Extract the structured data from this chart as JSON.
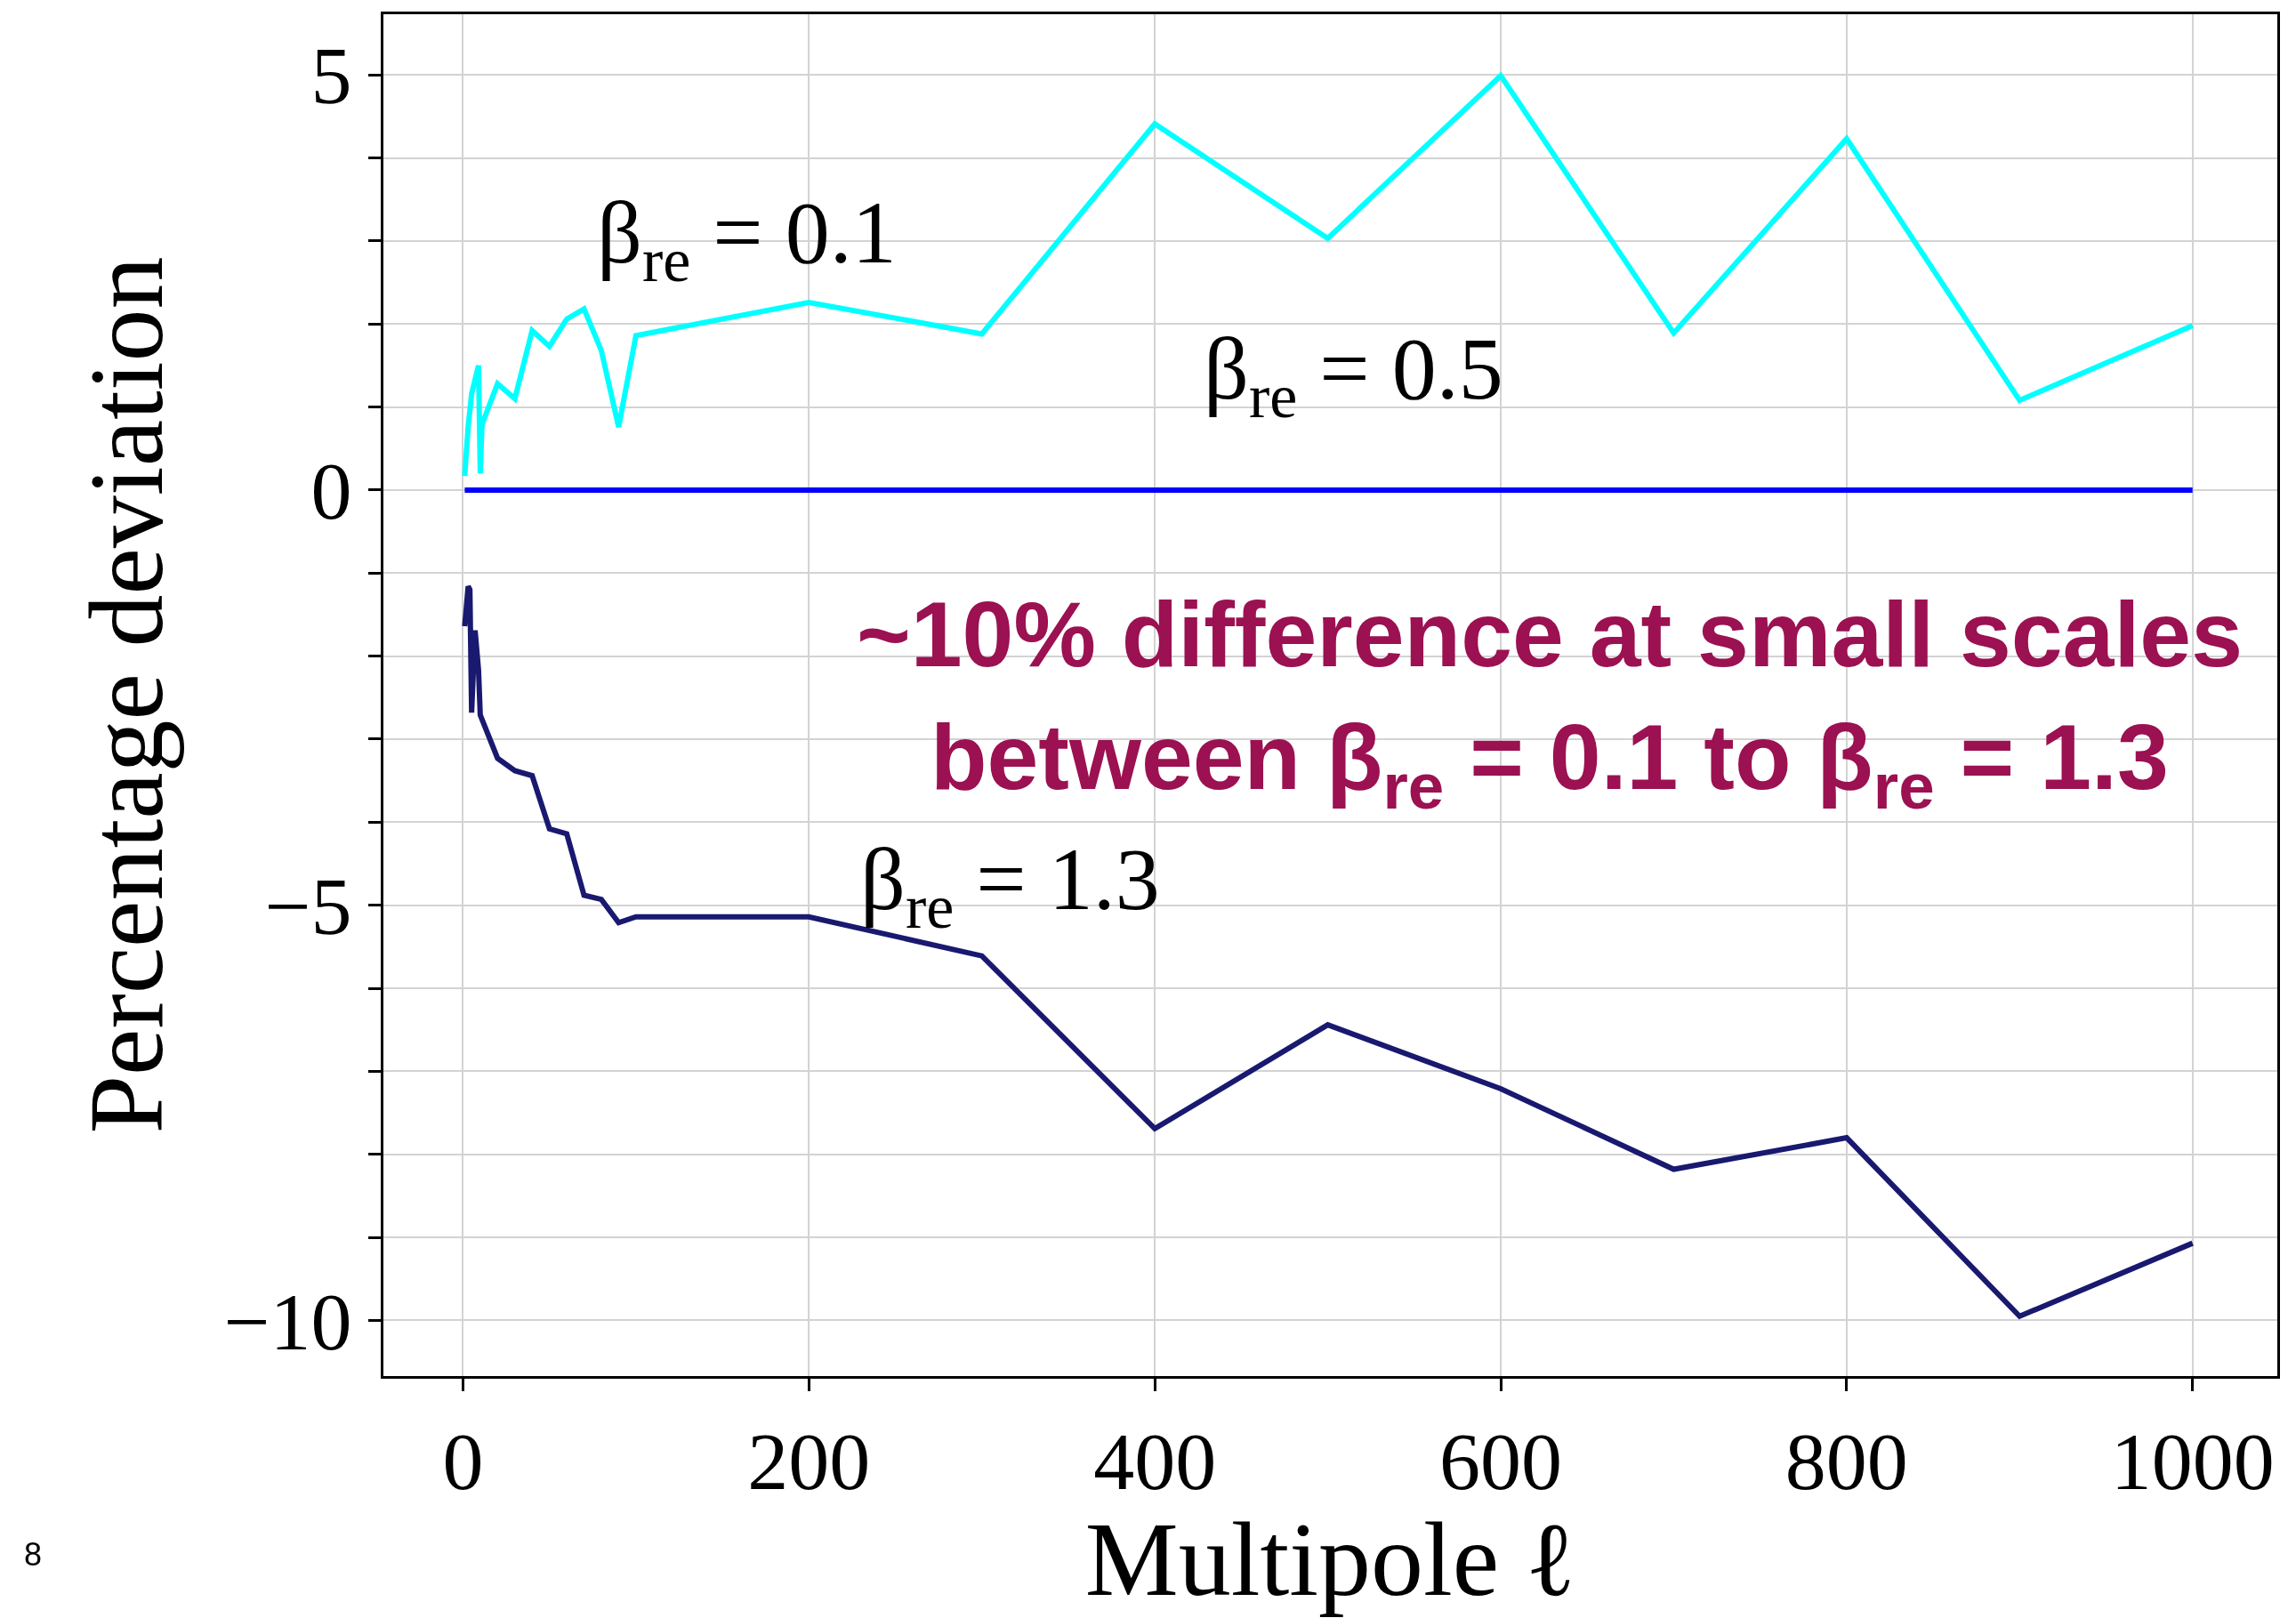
{
  "chart_data": {
    "type": "line",
    "xlabel": "Multipole ℓ",
    "ylabel": "Percentage deviation",
    "xlim": [
      -46,
      1049
    ],
    "ylim": [
      -10.67,
      5.73
    ],
    "xticks": [
      0,
      200,
      400,
      600,
      800,
      1000
    ],
    "yticks": [
      {
        "value": -10,
        "label": "−10"
      },
      {
        "value": -9,
        "label": null
      },
      {
        "value": -8,
        "label": null
      },
      {
        "value": -7,
        "label": null
      },
      {
        "value": -6,
        "label": null
      },
      {
        "value": -5,
        "label": "−5"
      },
      {
        "value": -4,
        "label": null
      },
      {
        "value": -3,
        "label": null
      },
      {
        "value": -2,
        "label": null
      },
      {
        "value": -1,
        "label": null
      },
      0,
      {
        "value": 1,
        "label": null
      },
      {
        "value": 2,
        "label": null
      },
      {
        "value": 3,
        "label": null
      },
      {
        "value": 4,
        "label": null
      },
      5
    ],
    "grid": true,
    "legend": false,
    "marker": "none",
    "line_style": "solid",
    "series": [
      {
        "name": "β$_{re}$ = 0.1",
        "color": "#00ffff",
        "x": [
          1,
          3,
          5,
          9,
          10,
          11,
          20,
          30,
          40,
          50,
          60,
          70,
          80,
          90,
          100,
          200,
          300,
          400,
          500,
          600,
          700,
          800,
          900,
          1000
        ],
        "values": [
          0.17,
          0.76,
          1.16,
          1.5,
          0.2,
          0.79,
          1.28,
          1.1,
          1.92,
          1.73,
          2.06,
          2.18,
          1.68,
          0.76,
          1.86,
          2.26,
          1.88,
          4.41,
          3.03,
          4.99,
          1.89,
          4.23,
          1.08,
          1.98
        ]
      },
      {
        "name": "β$_{re}$ = 0.5",
        "color": "#0000ff",
        "x": [
          1,
          2,
          3,
          4,
          5,
          6,
          7,
          8,
          9,
          10,
          20,
          30,
          40,
          50,
          60,
          70,
          80,
          90,
          100,
          200,
          300,
          400,
          500,
          600,
          700,
          800,
          900,
          1000
        ],
        "values": [
          0,
          0,
          0,
          0,
          0,
          0,
          0,
          0,
          0,
          0,
          0,
          0,
          0,
          0,
          0,
          0,
          0,
          0,
          0,
          0,
          0,
          0,
          0,
          0,
          0,
          0,
          0,
          0
        ]
      },
      {
        "name": "β$_{re}$ = 1.3",
        "color": "#191970",
        "x": [
          1,
          3,
          4,
          5,
          7,
          9,
          10,
          20,
          30,
          40,
          50,
          60,
          70,
          80,
          90,
          100,
          200,
          300,
          400,
          500,
          600,
          700,
          800,
          900,
          1000
        ],
        "values": [
          -1.64,
          -1.16,
          -1.2,
          -2.68,
          -1.69,
          -2.17,
          -2.71,
          -3.23,
          -3.38,
          -3.44,
          -4.08,
          -4.14,
          -4.88,
          -4.93,
          -5.21,
          -5.14,
          -5.14,
          -5.61,
          -7.69,
          -6.44,
          -7.21,
          -8.18,
          -7.8,
          -9.95,
          -9.07
        ]
      }
    ],
    "annotations": [
      "~10% difference at small scales",
      "between β$_{re}$ = 0.1 to β$_{re}$ = 1.3",
      "8"
    ]
  }
}
